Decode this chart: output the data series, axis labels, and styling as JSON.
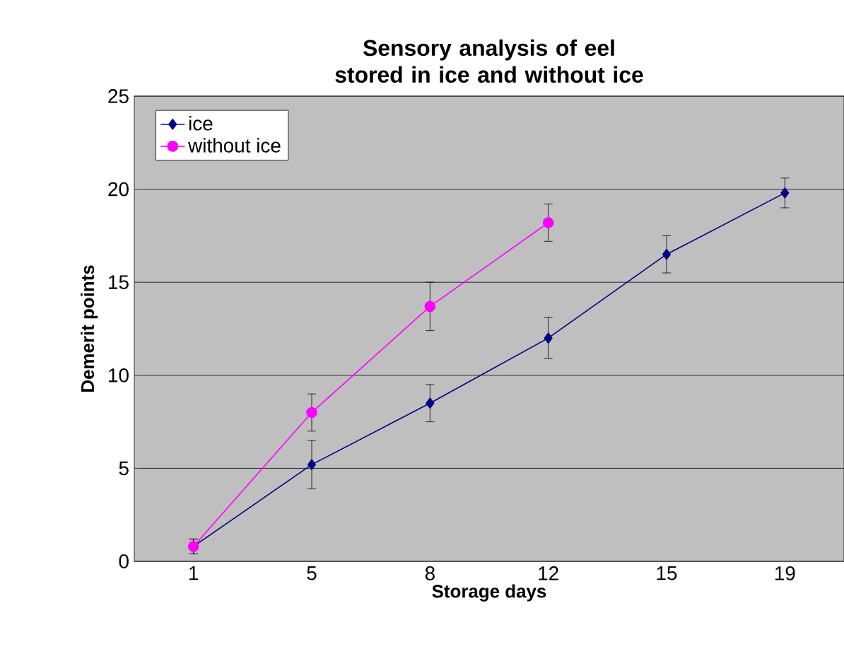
{
  "chart_data": {
    "type": "line",
    "title": "Sensory analysis of eel stored in ice and without ice",
    "xlabel": "Storage days",
    "ylabel": "Demerit points",
    "categories": [
      "1",
      "5",
      "8",
      "12",
      "15",
      "19"
    ],
    "series": [
      {
        "name": "ice",
        "color": "#000080",
        "marker": "diamond",
        "values": [
          0.8,
          5.2,
          8.5,
          12.0,
          16.5,
          19.8
        ],
        "errors": [
          0.4,
          1.3,
          1.0,
          1.1,
          1.0,
          0.8
        ]
      },
      {
        "name": "without ice",
        "color": "#ff00ff",
        "marker": "circle",
        "values": [
          0.8,
          8.0,
          13.7,
          18.2,
          null,
          null
        ],
        "errors": [
          0.4,
          1.0,
          1.3,
          1.0,
          null,
          null
        ]
      }
    ],
    "ylim": [
      0,
      25
    ],
    "yticks": [
      0,
      5,
      10,
      15,
      20,
      25
    ],
    "grid": "y",
    "legend": "top left",
    "line_style": "solid"
  }
}
